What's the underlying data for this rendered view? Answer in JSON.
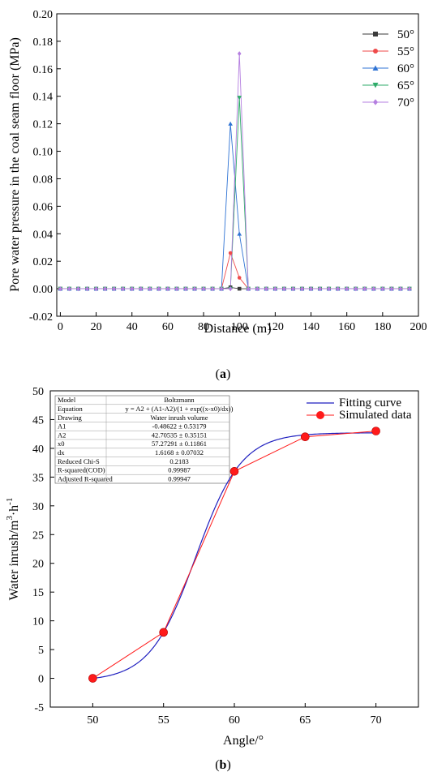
{
  "figure": {
    "panel_a_label": "(a)",
    "panel_b_label": "(b)"
  },
  "chart_data": [
    {
      "type": "line",
      "xlabel": "Distance (m)",
      "ylabel": "Pore water pressure in the coal seam floor (MPa)",
      "xlim": [
        -2,
        200
      ],
      "ylim": [
        -0.02,
        0.2
      ],
      "xticks": [
        0,
        20,
        40,
        60,
        80,
        100,
        120,
        140,
        160,
        180,
        200
      ],
      "yticks": [
        -0.02,
        0.0,
        0.02,
        0.04,
        0.06,
        0.08,
        0.1,
        0.12,
        0.14,
        0.16,
        0.18,
        0.2
      ],
      "ytick_labels": [
        "-0.02",
        "0.00",
        "0.02",
        "0.04",
        "0.06",
        "0.08",
        "0.10",
        "0.12",
        "0.14",
        "0.16",
        "0.18",
        "0.20"
      ],
      "legend_position": "top-right",
      "grid": false,
      "x": [
        0,
        5,
        10,
        15,
        20,
        25,
        30,
        35,
        40,
        45,
        50,
        55,
        60,
        65,
        70,
        75,
        80,
        85,
        90,
        95,
        100,
        105,
        110,
        115,
        120,
        125,
        130,
        135,
        140,
        145,
        150,
        155,
        160,
        165,
        170,
        175,
        180,
        185,
        190,
        195
      ],
      "series": [
        {
          "name": "50°",
          "color": "#3a3a3a",
          "marker": "square",
          "values": [
            0,
            0,
            0,
            0,
            0,
            0,
            0,
            0,
            0,
            0,
            0,
            0,
            0,
            0,
            0,
            0,
            0,
            0,
            0,
            0.001,
            0,
            0,
            0,
            0,
            0,
            0,
            0,
            0,
            0,
            0,
            0,
            0,
            0,
            0,
            0,
            0,
            0,
            0,
            0,
            0
          ]
        },
        {
          "name": "55°",
          "color": "#ef4a4a",
          "marker": "circle",
          "values": [
            0,
            0,
            0,
            0,
            0,
            0,
            0,
            0,
            0,
            0,
            0,
            0,
            0,
            0,
            0,
            0,
            0,
            0,
            0,
            0.026,
            0.008,
            0,
            0,
            0,
            0,
            0,
            0,
            0,
            0,
            0,
            0,
            0,
            0,
            0,
            0,
            0,
            0,
            0,
            0,
            0
          ]
        },
        {
          "name": "60°",
          "color": "#2f73d4",
          "marker": "triangle-up",
          "values": [
            0,
            0,
            0,
            0,
            0,
            0,
            0,
            0,
            0,
            0,
            0,
            0,
            0,
            0,
            0,
            0,
            0,
            0,
            0,
            0.12,
            0.04,
            0,
            0,
            0,
            0,
            0,
            0,
            0,
            0,
            0,
            0,
            0,
            0,
            0,
            0,
            0,
            0,
            0,
            0,
            0
          ]
        },
        {
          "name": "65°",
          "color": "#2eab69",
          "marker": "triangle-down",
          "values": [
            0,
            0,
            0,
            0,
            0,
            0,
            0,
            0,
            0,
            0,
            0,
            0,
            0,
            0,
            0,
            0,
            0,
            0,
            0,
            0,
            0.139,
            0,
            0,
            0,
            0,
            0,
            0,
            0,
            0,
            0,
            0,
            0,
            0,
            0,
            0,
            0,
            0,
            0,
            0,
            0
          ]
        },
        {
          "name": "70°",
          "color": "#b57fe0",
          "marker": "diamond",
          "values": [
            0,
            0,
            0,
            0,
            0,
            0,
            0,
            0,
            0,
            0,
            0,
            0,
            0,
            0,
            0,
            0,
            0,
            0,
            0,
            0,
            0.171,
            0,
            0,
            0,
            0,
            0,
            0,
            0,
            0,
            0,
            0,
            0,
            0,
            0,
            0,
            0,
            0,
            0,
            0,
            0
          ]
        }
      ]
    },
    {
      "type": "line",
      "xlabel": "Angle/°",
      "ylabel_main": "Water inrush/m",
      "ylabel_sup1": "3",
      "ylabel_mid": "·h",
      "ylabel_sup2": "-1",
      "xlim": [
        47,
        73
      ],
      "ylim": [
        -5,
        50
      ],
      "xticks": [
        50,
        55,
        60,
        65,
        70
      ],
      "yticks": [
        -5,
        0,
        5,
        10,
        15,
        20,
        25,
        30,
        35,
        40,
        45,
        50
      ],
      "legend_position": "top-right",
      "grid": false,
      "series": [
        {
          "name": "Fitting curve",
          "color": "#1f1fbf",
          "kind": "boltzmann",
          "A1": -0.48622,
          "A2": 42.70535,
          "x0": 57.27291,
          "dx": 1.6168,
          "x_range": [
            50,
            70
          ]
        },
        {
          "name": "Simulated data",
          "color": "#ff1a1a",
          "marker": "circle",
          "x": [
            50,
            55,
            60,
            65,
            70
          ],
          "values": [
            0,
            8,
            36,
            42,
            43
          ]
        }
      ],
      "fit_table": [
        [
          "Model",
          "Boltzmann"
        ],
        [
          "Equation",
          "y = A2 + (A1-A2)/(1 + exp((x-x0)/dx))"
        ],
        [
          "Drawing",
          "Water inrush volume"
        ],
        [
          "A1",
          "-0.48622 ± 0.53179"
        ],
        [
          "A2",
          "42.70535 ± 0.35151"
        ],
        [
          "x0",
          "57.27291 ± 0.11861"
        ],
        [
          "dx",
          "1.6168 ± 0.07032"
        ],
        [
          "Reduced Chi-S",
          "0.2183"
        ],
        [
          "R-squared(COD)",
          "0.99987"
        ],
        [
          "Adjusted R-squared",
          "0.99947"
        ]
      ]
    }
  ]
}
